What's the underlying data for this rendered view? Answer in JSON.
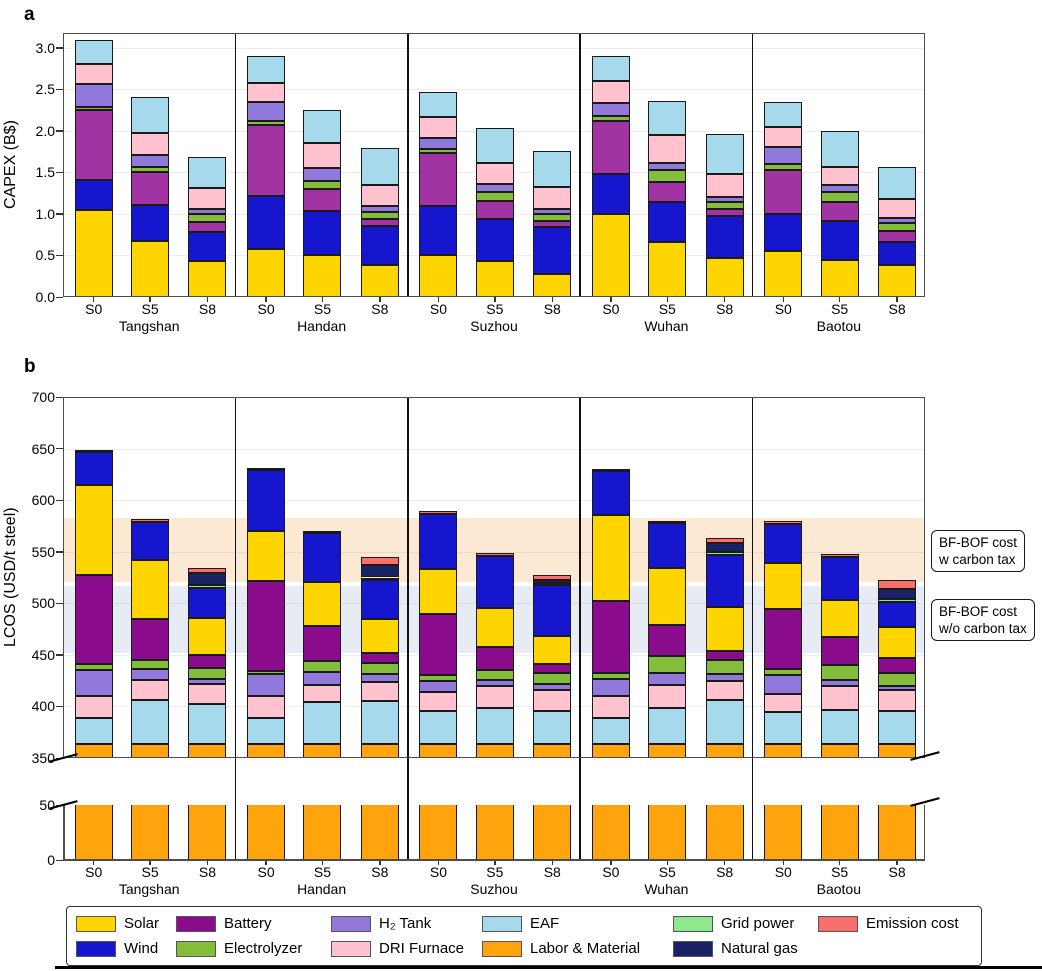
{
  "colors": {
    "solar": "#FFD500",
    "wind": "#1616CF",
    "battery": "#8A0B8C",
    "battery_capex": "#A233A2",
    "electrolyzer": "#83BD3B",
    "h2_tank": "#9179DC",
    "dri_furnace": "#FFC2CE",
    "eaf": "#A6D9EC",
    "labor_material": "#FFA40D",
    "grid_power": "#8EE88E",
    "natural_gas": "#1B2264",
    "emission_cost": "#F96F6B",
    "band_w_tax": "#FBE9D4",
    "band_wo_tax": "#E7EBF3",
    "grid_line": "#ECECEC",
    "edge": "#1A1A1A",
    "panel_border": "#4D4D4D"
  },
  "panel_a": {
    "letter": "a",
    "ylabel": "CAPEX (B$)",
    "ytick_labels": [
      "0.0",
      "0.5",
      "1.0",
      "1.5",
      "2.0",
      "2.5",
      "3.0"
    ]
  },
  "panel_b": {
    "letter": "b",
    "ylabel": "LCOS (USD/t steel)",
    "ytick_labels_upper": [
      "350",
      "400",
      "450",
      "500",
      "550",
      "600",
      "650",
      "700"
    ],
    "ytick_labels_mini": [
      "0",
      "50"
    ],
    "annotations": [
      {
        "line1": "BF-BOF cost",
        "line2": "w carbon tax"
      },
      {
        "line1": "BF-BOF cost",
        "line2": "w/o carbon tax"
      }
    ]
  },
  "legend": {
    "rows": [
      [
        {
          "label": "Solar",
          "color": "solar"
        },
        {
          "label": "Battery",
          "color": "battery"
        },
        {
          "label": "H₂ Tank",
          "color": "h2_tank"
        },
        {
          "label": "EAF",
          "color": "eaf"
        },
        {
          "label": "Grid power",
          "color": "grid_power"
        },
        {
          "label": "Emission cost",
          "color": "emission_cost"
        }
      ],
      [
        {
          "label": "Wind",
          "color": "wind"
        },
        {
          "label": "Electrolyzer",
          "color": "electrolyzer"
        },
        {
          "label": "DRI Furnace",
          "color": "dri_furnace"
        },
        {
          "label": "Labor & Material",
          "color": "labor_material"
        },
        {
          "label": "Natural gas",
          "color": "natural_gas"
        }
      ]
    ]
  },
  "chart_data": [
    {
      "type": "bar",
      "stacked": true,
      "panel": "a",
      "title": "",
      "ylabel": "CAPEX (B$)",
      "unit": "B$",
      "ylim": [
        0,
        3.18
      ],
      "ytick_vals": [
        0,
        0.5,
        1.0,
        1.5,
        2.0,
        2.5,
        3.0
      ],
      "grid": true,
      "groups": [
        "Tangshan",
        "Handan",
        "Suzhou",
        "Wuhan",
        "Baotou"
      ],
      "scenarios": [
        "S0",
        "S5",
        "S8"
      ],
      "series_order": [
        "Solar",
        "Wind",
        "Battery",
        "Electrolyzer",
        "H2 Tank",
        "DRI Furnace",
        "EAF"
      ],
      "color_keys": [
        "solar",
        "wind",
        "battery_capex",
        "electrolyzer",
        "h2_tank",
        "dri_furnace",
        "eaf"
      ],
      "values": {
        "Tangshan": {
          "S0": [
            1.05,
            0.36,
            0.84,
            0.04,
            0.28,
            0.24,
            0.29
          ],
          "S5": [
            0.68,
            0.43,
            0.39,
            0.07,
            0.14,
            0.26,
            0.44
          ],
          "S8": [
            0.43,
            0.35,
            0.12,
            0.1,
            0.06,
            0.25,
            0.38
          ]
        },
        "Handan": {
          "S0": [
            0.58,
            0.64,
            0.85,
            0.05,
            0.23,
            0.23,
            0.32
          ],
          "S5": [
            0.5,
            0.53,
            0.27,
            0.1,
            0.15,
            0.3,
            0.4
          ],
          "S8": [
            0.39,
            0.47,
            0.08,
            0.08,
            0.08,
            0.25,
            0.45
          ]
        },
        "Suzhou": {
          "S0": [
            0.5,
            0.6,
            0.63,
            0.05,
            0.13,
            0.26,
            0.3
          ],
          "S5": [
            0.43,
            0.51,
            0.22,
            0.1,
            0.1,
            0.26,
            0.41
          ],
          "S8": [
            0.28,
            0.56,
            0.07,
            0.09,
            0.06,
            0.27,
            0.43
          ]
        },
        "Wuhan": {
          "S0": [
            1.0,
            0.48,
            0.64,
            0.06,
            0.16,
            0.26,
            0.3
          ],
          "S5": [
            0.66,
            0.49,
            0.23,
            0.15,
            0.09,
            0.33,
            0.41
          ],
          "S8": [
            0.47,
            0.5,
            0.09,
            0.08,
            0.07,
            0.27,
            0.48
          ]
        },
        "Baotou": {
          "S0": [
            0.55,
            0.45,
            0.53,
            0.07,
            0.21,
            0.24,
            0.3
          ],
          "S5": [
            0.45,
            0.47,
            0.23,
            0.12,
            0.08,
            0.21,
            0.44
          ],
          "S8": [
            0.38,
            0.28,
            0.13,
            0.1,
            0.06,
            0.23,
            0.39
          ]
        }
      }
    },
    {
      "type": "bar",
      "stacked": true,
      "panel": "b",
      "title": "",
      "ylabel": "LCOS (USD/t steel)",
      "unit": "USD/t steel",
      "axis_break": true,
      "ylim_upper": [
        350,
        700
      ],
      "ylim_mini": [
        0,
        50
      ],
      "ytick_vals_upper": [
        350,
        400,
        450,
        500,
        550,
        600,
        650,
        700
      ],
      "ytick_vals_mini": [
        0,
        50
      ],
      "grid": true,
      "groups": [
        "Tangshan",
        "Handan",
        "Suzhou",
        "Wuhan",
        "Baotou"
      ],
      "scenarios": [
        "S0",
        "S5",
        "S8"
      ],
      "series_order": [
        "Labor & Material",
        "EAF",
        "DRI Furnace",
        "H2 Tank",
        "Electrolyzer",
        "Battery",
        "Solar",
        "Wind",
        "Grid power",
        "Natural gas",
        "Emission cost"
      ],
      "color_keys": [
        "labor_material",
        "eaf",
        "dri_furnace",
        "h2_tank",
        "electrolyzer",
        "battery",
        "solar",
        "wind",
        "grid_power",
        "natural_gas",
        "emission_cost"
      ],
      "bands": [
        {
          "label": "BF-BOF cost w carbon tax",
          "range": [
            521,
            583
          ],
          "color": "band_w_tax"
        },
        {
          "label": "BF-BOF cost w/o carbon tax",
          "range": [
            452,
            517
          ],
          "color": "band_wo_tax"
        }
      ],
      "values": {
        "Tangshan": {
          "S0": [
            364,
            25,
            21,
            25,
            6,
            86,
            88,
            32,
            0,
            0,
            2
          ],
          "S5": [
            364,
            42,
            20,
            10,
            9,
            40,
            57,
            37,
            0,
            0,
            3
          ],
          "S8": [
            364,
            38,
            20,
            5,
            10,
            13,
            36,
            29,
            3,
            11,
            5
          ]
        },
        "Handan": {
          "S0": [
            364,
            25,
            21,
            21,
            3,
            88,
            48,
            59,
            0,
            0,
            2
          ],
          "S5": [
            364,
            40,
            17,
            12,
            11,
            34,
            43,
            47,
            0,
            0,
            2
          ],
          "S8": [
            364,
            41,
            19,
            7,
            11,
            10,
            33,
            38,
            2,
            12,
            8
          ]
        },
        "Suzhou": {
          "S0": [
            364,
            32,
            18,
            11,
            5,
            60,
            43,
            54,
            0,
            0,
            2
          ],
          "S5": [
            364,
            34,
            22,
            6,
            9,
            23,
            37,
            51,
            0,
            0,
            3
          ],
          "S8": [
            364,
            32,
            20,
            6,
            10,
            9,
            27,
            50,
            2,
            3,
            4
          ]
        },
        "Wuhan": {
          "S0": [
            364,
            25,
            21,
            17,
            5,
            70,
            84,
            42,
            0,
            0,
            2
          ],
          "S5": [
            364,
            34,
            23,
            11,
            17,
            30,
            55,
            44,
            0,
            0,
            2
          ],
          "S8": [
            364,
            42,
            19,
            6,
            14,
            9,
            42,
            51,
            3,
            8,
            5
          ]
        },
        "Baotou": {
          "S0": [
            364,
            31,
            17,
            18,
            6,
            58,
            45,
            38,
            0,
            0,
            3
          ],
          "S5": [
            364,
            33,
            23,
            6,
            14,
            27,
            36,
            42,
            0,
            0,
            3
          ],
          "S8": [
            364,
            32,
            20,
            4,
            12,
            15,
            30,
            24,
            3,
            10,
            9
          ]
        }
      }
    }
  ]
}
